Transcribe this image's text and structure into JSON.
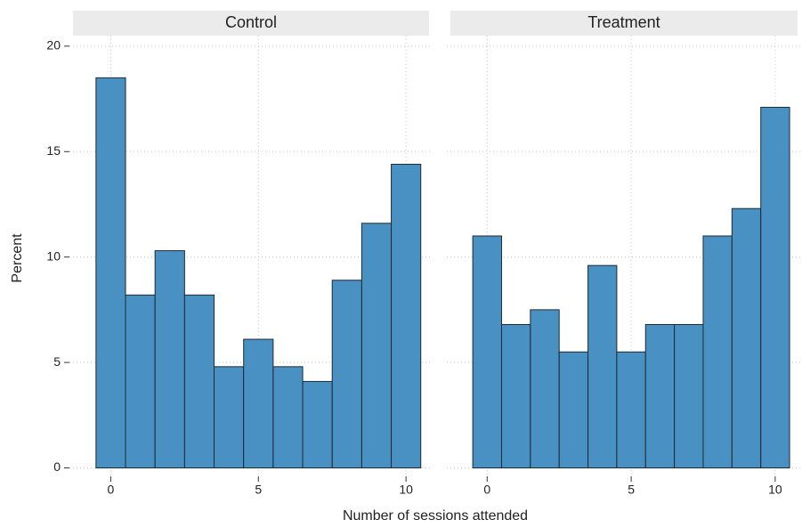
{
  "chart_data": {
    "type": "histogram",
    "xlabel": "Number of sessions attended",
    "ylabel": "Percent",
    "color": "#4a91c3",
    "grid": true,
    "xlim": [
      -1.4,
      10.9
    ],
    "xticks": [
      0,
      5,
      10
    ],
    "ylim": [
      -0.4,
      20.5
    ],
    "yticks": [
      0,
      5,
      10,
      15,
      20
    ],
    "panels": [
      {
        "title": "Control",
        "bins": [
          -0.5,
          0.5,
          1.5,
          2.5,
          3.5,
          4.5,
          5.5,
          6.5,
          7.5,
          8.5,
          9.5,
          10.5
        ],
        "values": [
          18.5,
          8.2,
          10.3,
          8.2,
          4.8,
          6.1,
          4.8,
          4.1,
          8.9,
          11.6,
          14.4
        ]
      },
      {
        "title": "Treatment",
        "bins": [
          -0.5,
          0.5,
          1.5,
          2.5,
          3.5,
          4.5,
          5.5,
          6.5,
          7.5,
          8.5,
          9.5,
          10.5
        ],
        "values": [
          11.0,
          6.8,
          7.5,
          5.5,
          9.6,
          5.5,
          6.8,
          6.8,
          11.0,
          12.3,
          17.1
        ]
      }
    ]
  }
}
